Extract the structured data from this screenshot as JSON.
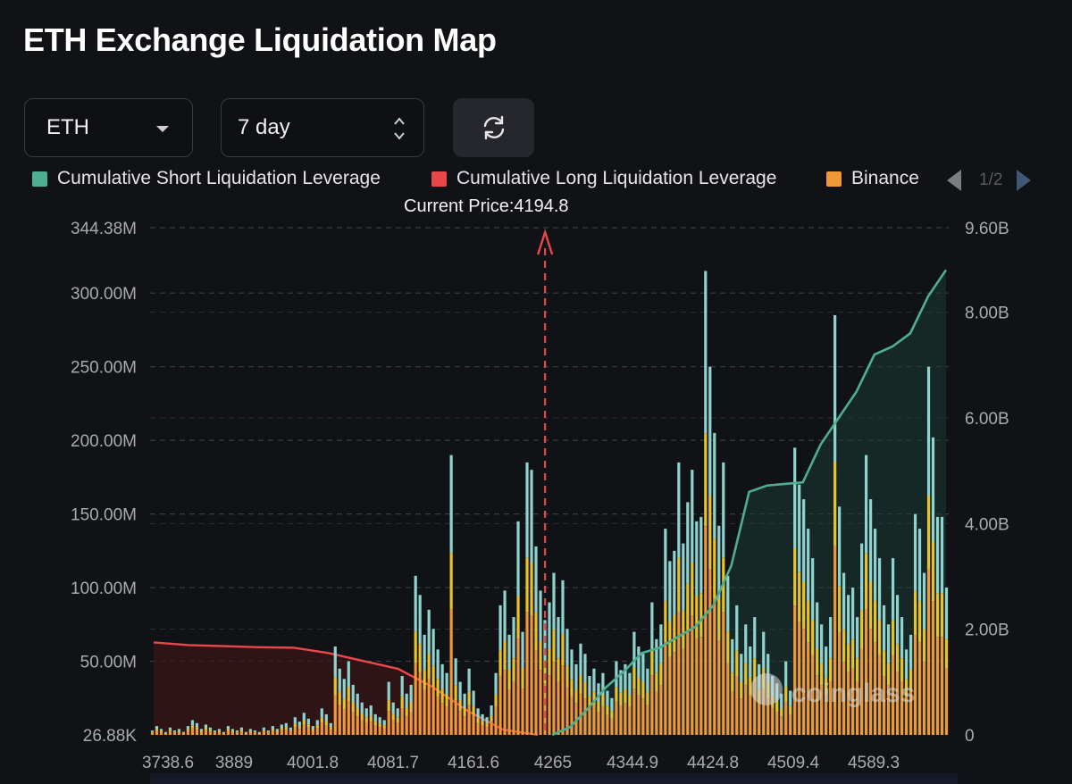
{
  "title": "ETH Exchange Liquidation Map",
  "controls": {
    "symbol": "ETH",
    "period": "7 day",
    "refresh_icon": "refresh-icon"
  },
  "legend": {
    "items": [
      {
        "label": "Cumulative Short Liquidation Leverage",
        "color": "#4fae8f"
      },
      {
        "label": "Cumulative Long Liquidation Leverage",
        "color": "#e8484c"
      },
      {
        "label": "Binance",
        "color": "#f0973a"
      }
    ],
    "page": "1/2"
  },
  "current_price_label": "Current Price:4194.8",
  "watermark": "coinglass",
  "chart_data": {
    "type": "bar",
    "title": "ETH Exchange Liquidation Map",
    "current_price": 4194.8,
    "x_ticks": [
      "3738.6",
      "3889",
      "4001.8",
      "4081.7",
      "4161.6",
      "4265",
      "4344.9",
      "4424.8",
      "4509.4",
      "4589.3"
    ],
    "y_left_ticks": [
      "344.38M",
      "300.00M",
      "250.00M",
      "200.00M",
      "150.00M",
      "100.00M",
      "50.00M",
      "26.88K"
    ],
    "y_right_ticks": [
      "9.60B",
      "8.00B",
      "6.00B",
      "4.00B",
      "2.00B",
      "0"
    ],
    "ylim_left_M": [
      0,
      344.38
    ],
    "ylim_right_B": [
      0,
      9.6
    ],
    "bars_total_M": [
      3,
      6,
      4,
      2,
      5,
      3,
      4,
      2,
      6,
      10,
      8,
      4,
      7,
      5,
      3,
      4,
      2,
      6,
      4,
      3,
      5,
      2,
      4,
      3,
      2,
      5,
      3,
      6,
      4,
      7,
      8,
      5,
      12,
      9,
      15,
      11,
      6,
      10,
      18,
      14,
      8,
      60,
      45,
      38,
      50,
      34,
      28,
      22,
      18,
      20,
      14,
      12,
      10,
      36,
      22,
      18,
      40,
      28,
      34,
      108,
      95,
      68,
      85,
      72,
      58,
      48,
      42,
      190,
      52,
      36,
      28,
      45,
      30,
      18,
      14,
      12,
      20,
      42,
      88,
      98,
      68,
      80,
      145,
      70,
      185,
      180,
      128,
      98,
      78,
      90,
      110,
      80,
      105,
      72,
      58,
      48,
      62,
      55,
      40,
      45,
      35,
      42,
      30,
      25,
      50,
      44,
      48,
      42,
      70,
      60,
      55,
      45,
      90,
      65,
      75,
      140,
      118,
      125,
      185,
      130,
      158,
      180,
      145,
      148,
      315,
      250,
      205,
      142,
      185,
      108,
      65,
      88,
      55,
      75,
      60,
      80,
      48,
      70,
      55,
      40,
      35,
      28,
      50,
      30,
      195,
      170,
      160,
      140,
      120,
      90,
      75,
      60,
      80,
      285,
      155,
      110,
      95,
      100,
      80,
      130,
      190,
      160,
      140,
      120,
      88,
      75,
      120,
      95,
      80,
      58,
      68,
      150,
      140,
      110,
      250,
      202,
      148,
      148,
      100
    ],
    "short_cumulative_B": [
      0,
      0.15,
      0.5,
      0.9,
      1.2,
      1.55,
      1.65,
      1.85,
      2.05,
      2.45,
      3.2,
      4.6,
      4.72,
      4.75,
      4.78,
      5.5,
      6.0,
      6.5,
      7.2,
      7.35,
      7.6,
      8.3,
      8.8
    ],
    "long_cumulative_B": [
      1.75,
      1.7,
      1.68,
      1.66,
      1.65,
      1.55,
      1.4,
      1.25,
      0.9,
      0.45,
      0.1,
      0
    ]
  }
}
